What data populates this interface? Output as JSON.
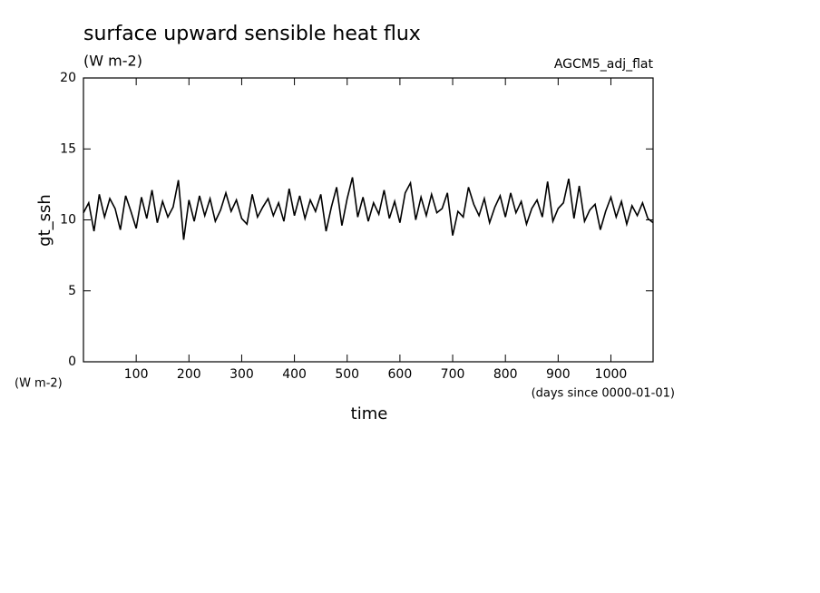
{
  "chart_data": {
    "type": "line",
    "title": "surface upward sensible heat flux",
    "subtitle": "(W m-2)",
    "run_label": "AGCM5_adj_flat",
    "y_label": "gt_ssh",
    "y_units": "(W m-2)",
    "x_label": "time",
    "x_units": "(days since 0000-01-01)",
    "color": "#000000",
    "xlim": [
      0,
      1080
    ],
    "ylim": [
      0,
      20
    ],
    "xticks": [
      100,
      200,
      300,
      400,
      500,
      600,
      700,
      800,
      900,
      1000
    ],
    "yticks": [
      0,
      5,
      10,
      15,
      20
    ],
    "x": [
      0,
      10,
      20,
      30,
      40,
      50,
      60,
      70,
      80,
      90,
      100,
      110,
      120,
      130,
      140,
      150,
      160,
      170,
      180,
      190,
      200,
      210,
      220,
      230,
      240,
      250,
      260,
      270,
      280,
      290,
      300,
      310,
      320,
      330,
      340,
      350,
      360,
      370,
      380,
      390,
      400,
      410,
      420,
      430,
      440,
      450,
      460,
      470,
      480,
      490,
      500,
      510,
      520,
      530,
      540,
      550,
      560,
      570,
      580,
      590,
      600,
      610,
      620,
      630,
      640,
      650,
      660,
      670,
      680,
      690,
      700,
      710,
      720,
      730,
      740,
      750,
      760,
      770,
      780,
      790,
      800,
      810,
      820,
      830,
      840,
      850,
      860,
      870,
      880,
      890,
      900,
      910,
      920,
      930,
      940,
      950,
      960,
      970,
      980,
      990,
      1000,
      1010,
      1020,
      1030,
      1040,
      1050,
      1060,
      1070,
      1080
    ],
    "values": [
      10.5,
      11.2,
      9.2,
      11.8,
      10.2,
      11.5,
      10.8,
      9.3,
      11.7,
      10.6,
      9.4,
      11.6,
      10.1,
      12.1,
      9.8,
      11.3,
      10.2,
      10.9,
      12.8,
      8.6,
      11.4,
      9.9,
      11.7,
      10.3,
      11.5,
      9.9,
      10.7,
      11.9,
      10.6,
      11.4,
      10.1,
      9.7,
      11.8,
      10.2,
      10.9,
      11.5,
      10.3,
      11.2,
      9.9,
      12.2,
      10.3,
      11.7,
      10.1,
      11.4,
      10.6,
      11.8,
      9.2,
      10.9,
      12.3,
      9.6,
      11.5,
      13.0,
      10.2,
      11.6,
      9.9,
      11.2,
      10.4,
      12.1,
      10.1,
      11.3,
      9.8,
      11.9,
      12.6,
      10.0,
      11.6,
      10.3,
      11.8,
      10.5,
      10.8,
      11.9,
      8.9,
      10.6,
      10.2,
      12.3,
      11.1,
      10.3,
      11.5,
      9.8,
      10.9,
      11.7,
      10.2,
      11.9,
      10.5,
      11.3,
      9.7,
      10.8,
      11.4,
      10.2,
      12.7,
      9.9,
      10.8,
      11.2,
      12.9,
      10.1,
      12.4,
      9.9,
      10.7,
      11.1,
      9.3,
      10.6,
      11.6,
      10.2,
      11.3,
      9.7,
      11.0,
      10.3,
      11.2,
      10.1,
      9.8
    ]
  }
}
